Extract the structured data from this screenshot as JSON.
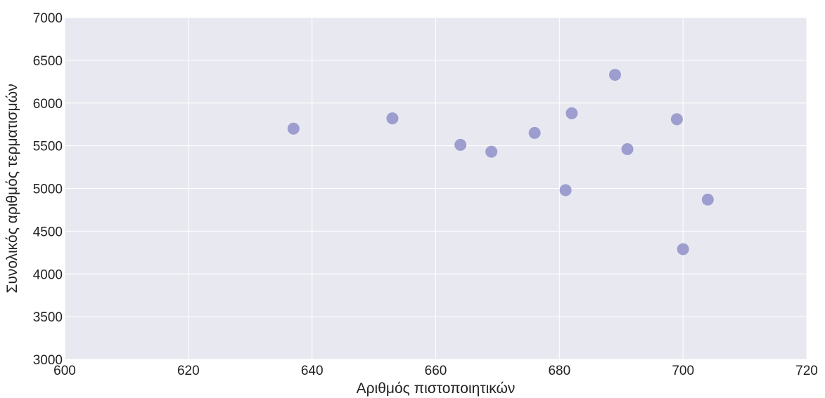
{
  "chart_data": {
    "type": "scatter",
    "title": "",
    "xlabel": "Αριθμός πιστοποιητικών",
    "ylabel": "Συνολικός αριθμός τερματισμών",
    "xlim": [
      600,
      720
    ],
    "ylim": [
      3000,
      7000
    ],
    "x_ticks": [
      600,
      620,
      640,
      660,
      680,
      700,
      720
    ],
    "y_ticks": [
      3000,
      3500,
      4000,
      4500,
      5000,
      5500,
      6000,
      6500,
      7000
    ],
    "grid": true,
    "points": [
      {
        "x": 637,
        "y": 5700
      },
      {
        "x": 653,
        "y": 5820
      },
      {
        "x": 664,
        "y": 5510
      },
      {
        "x": 669,
        "y": 5430
      },
      {
        "x": 676,
        "y": 5650
      },
      {
        "x": 681,
        "y": 4980
      },
      {
        "x": 682,
        "y": 5880
      },
      {
        "x": 689,
        "y": 6330
      },
      {
        "x": 691,
        "y": 5460
      },
      {
        "x": 699,
        "y": 5810
      },
      {
        "x": 700,
        "y": 4290
      },
      {
        "x": 704,
        "y": 4870
      }
    ],
    "colors": {
      "background": "#e8e8f1",
      "grid": "#ffffff",
      "marker": "#9999cc"
    }
  }
}
